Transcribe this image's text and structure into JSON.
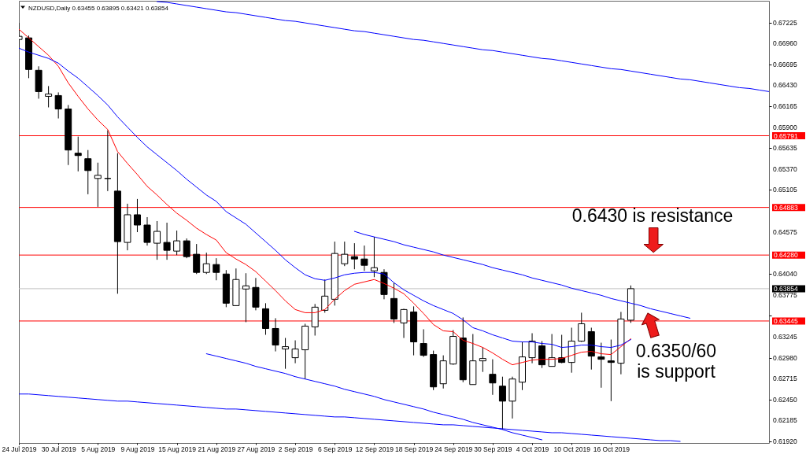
{
  "chart_data": {
    "type": "candlestick",
    "title": "NZDUSD,Daily 0.63455 0.63895 0.63421 0.63854",
    "categories": [
      "24 Jul 2019",
      null,
      null,
      null,
      "30 Jul 2019",
      null,
      null,
      null,
      "5 Aug 2019",
      null,
      null,
      null,
      "9 Aug 2019",
      null,
      null,
      null,
      "15 Aug 2019",
      null,
      null,
      null,
      "21 Aug 2019",
      null,
      null,
      null,
      "27 Aug 2019",
      null,
      null,
      null,
      "2 Sep 2019",
      null,
      null,
      null,
      "6 Sep 2019",
      null,
      null,
      null,
      "12 Sep 2019",
      null,
      null,
      null,
      "18 Sep 2019",
      null,
      null,
      null,
      "24 Sep 2019",
      null,
      null,
      null,
      "30 Sep 2019",
      null,
      null,
      null,
      "4 Oct 2019",
      null,
      null,
      null,
      "10 Oct 2019",
      null,
      null,
      null,
      "16 Oct 2019",
      null,
      null,
      null,
      null,
      null,
      null,
      null,
      null,
      null,
      null,
      null,
      null,
      null,
      null,
      null,
      null
    ],
    "ohlc": [
      [
        0.6701,
        0.6722,
        0.669,
        0.6705
      ],
      [
        0.6703,
        0.6706,
        0.6652,
        0.6663
      ],
      [
        0.6662,
        0.6667,
        0.6626,
        0.6635
      ],
      [
        0.6629,
        0.6642,
        0.6615,
        0.6632
      ],
      [
        0.663,
        0.6634,
        0.6601,
        0.6613
      ],
      [
        0.6613,
        0.6618,
        0.6542,
        0.6561
      ],
      [
        0.6557,
        0.6578,
        0.6534,
        0.6554
      ],
      [
        0.655,
        0.6561,
        0.6505,
        0.6535
      ],
      [
        0.6525,
        0.6545,
        0.6489,
        0.6529
      ],
      [
        0.6525,
        0.6586,
        0.6509,
        0.6525
      ],
      [
        0.6509,
        0.6557,
        0.6379,
        0.6445
      ],
      [
        0.6444,
        0.6493,
        0.6434,
        0.6479
      ],
      [
        0.6479,
        0.6499,
        0.6457,
        0.6466
      ],
      [
        0.6466,
        0.6476,
        0.644,
        0.6444
      ],
      [
        0.6443,
        0.6471,
        0.6422,
        0.6458
      ],
      [
        0.6444,
        0.6469,
        0.6422,
        0.6434
      ],
      [
        0.6433,
        0.6459,
        0.6428,
        0.6446
      ],
      [
        0.6446,
        0.6449,
        0.6424,
        0.6426
      ],
      [
        0.6429,
        0.6442,
        0.6404,
        0.6406
      ],
      [
        0.6406,
        0.6431,
        0.6404,
        0.6417
      ],
      [
        0.6416,
        0.6424,
        0.6396,
        0.6406
      ],
      [
        0.6404,
        0.6409,
        0.6362,
        0.6367
      ],
      [
        0.6364,
        0.6411,
        0.6364,
        0.6397
      ],
      [
        0.6385,
        0.6405,
        0.6343,
        0.6389
      ],
      [
        0.6387,
        0.6399,
        0.6358,
        0.6362
      ],
      [
        0.636,
        0.6367,
        0.6327,
        0.6335
      ],
      [
        0.6335,
        0.6348,
        0.6306,
        0.6314
      ],
      [
        0.6309,
        0.6323,
        0.6284,
        0.6312
      ],
      [
        0.6298,
        0.632,
        0.6291,
        0.6309
      ],
      [
        0.6308,
        0.6341,
        0.6271,
        0.6338
      ],
      [
        0.6337,
        0.6366,
        0.6326,
        0.6362
      ],
      [
        0.6358,
        0.6397,
        0.6355,
        0.6376
      ],
      [
        0.6372,
        0.6445,
        0.6364,
        0.643
      ],
      [
        0.6417,
        0.6445,
        0.6414,
        0.6429
      ],
      [
        0.6426,
        0.6443,
        0.641,
        0.6423
      ],
      [
        0.6423,
        0.644,
        0.6408,
        0.6415
      ],
      [
        0.6408,
        0.6451,
        0.64,
        0.6412
      ],
      [
        0.6406,
        0.641,
        0.6372,
        0.6378
      ],
      [
        0.6373,
        0.6393,
        0.6342,
        0.6347
      ],
      [
        0.6342,
        0.636,
        0.6323,
        0.6359
      ],
      [
        0.6356,
        0.6363,
        0.6301,
        0.6318
      ],
      [
        0.6316,
        0.6334,
        0.6299,
        0.6301
      ],
      [
        0.6302,
        0.6307,
        0.6257,
        0.6261
      ],
      [
        0.6265,
        0.6301,
        0.6259,
        0.6294
      ],
      [
        0.629,
        0.6333,
        0.6289,
        0.6325
      ],
      [
        0.6323,
        0.6349,
        0.6267,
        0.627
      ],
      [
        0.6264,
        0.6328,
        0.6264,
        0.6294
      ],
      [
        0.6294,
        0.6311,
        0.628,
        0.6297
      ],
      [
        0.6277,
        0.6296,
        0.6251,
        0.6266
      ],
      [
        0.6262,
        0.6274,
        0.6207,
        0.6243
      ],
      [
        0.6243,
        0.6274,
        0.6221,
        0.6271
      ],
      [
        0.6267,
        0.6318,
        0.6257,
        0.6299
      ],
      [
        0.6298,
        0.6329,
        0.6291,
        0.6319
      ],
      [
        0.6313,
        0.6319,
        0.6285,
        0.6289
      ],
      [
        0.6287,
        0.6328,
        0.6287,
        0.6298
      ],
      [
        0.6298,
        0.6327,
        0.6291,
        0.6292
      ],
      [
        0.6292,
        0.6336,
        0.6279,
        0.6319
      ],
      [
        0.6319,
        0.6355,
        0.6318,
        0.6341
      ],
      [
        0.6331,
        0.6336,
        0.6283,
        0.63
      ],
      [
        0.6299,
        0.6317,
        0.626,
        0.6296
      ],
      [
        0.6294,
        0.6321,
        0.6243,
        0.6292
      ],
      [
        0.6291,
        0.6356,
        0.6277,
        0.6347
      ],
      [
        0.63455,
        0.63895,
        0.63421,
        0.63854
      ],
      null,
      null,
      null,
      null,
      null,
      null,
      null,
      null,
      null,
      null,
      null,
      null,
      null,
      null
    ],
    "series": [
      {
        "type": "line",
        "color": "#ff0000",
        "values": [
          0.6714,
          0.6703,
          0.6692,
          0.6681,
          0.6667,
          0.6646,
          0.6629,
          0.6613,
          0.6599,
          0.6587,
          0.6559,
          0.6544,
          0.653,
          0.6515,
          0.6504,
          0.6492,
          0.6481,
          0.6472,
          0.6462,
          0.6454,
          0.6447,
          0.6431,
          0.6423,
          0.6416,
          0.6407,
          0.6395,
          0.6383,
          0.637,
          0.6359,
          0.6355,
          0.6355,
          0.6359,
          0.6372,
          0.6383,
          0.6391,
          0.6394,
          0.6397,
          0.6392,
          0.6386,
          0.6379,
          0.6367,
          0.6354,
          0.634,
          0.6332,
          0.6331,
          0.632,
          0.6316,
          0.6311,
          0.6304,
          0.6296,
          0.6289,
          0.6292,
          0.6295,
          0.6296,
          0.6296,
          0.6297,
          0.6301,
          0.6305,
          0.6306,
          0.6303,
          0.6302,
          0.6312,
          0.6322,
          null,
          null,
          null,
          null,
          null,
          null,
          null,
          null,
          null,
          null,
          null,
          null,
          null,
          null
        ]
      },
      {
        "type": "line",
        "color": "#0000ff",
        "values": [
          0.669,
          0.6685,
          0.6681,
          0.6677,
          0.6671,
          0.6661,
          0.6652,
          0.6641,
          0.663,
          0.6618,
          0.6603,
          0.659,
          0.6577,
          0.6565,
          0.6555,
          0.6545,
          0.6535,
          0.6524,
          0.6514,
          0.6504,
          0.6496,
          0.6483,
          0.6475,
          0.6467,
          0.6456,
          0.6445,
          0.6434,
          0.6422,
          0.6412,
          0.6403,
          0.6398,
          0.6396,
          0.6399,
          0.6403,
          0.6405,
          0.6406,
          0.6406,
          0.6404,
          0.6393,
          0.6384,
          0.6377,
          0.637,
          0.6364,
          0.6359,
          0.6354,
          0.6346,
          0.6336,
          0.6332,
          0.6327,
          0.6323,
          0.6319,
          0.6318,
          0.6318,
          0.6316,
          0.6315,
          0.6311,
          0.6312,
          0.6314,
          0.6314,
          0.6312,
          0.6311,
          0.6314,
          0.6321,
          null,
          null,
          null,
          null,
          null,
          null,
          null,
          null,
          null,
          null,
          null,
          null,
          null,
          null
        ]
      },
      {
        "type": "line",
        "color": "#0000ff",
        "values": [
          null,
          null,
          null,
          null,
          null,
          null,
          null,
          null,
          null,
          null,
          null,
          null,
          null,
          null,
          0.6749,
          0.6748,
          0.6746,
          0.6744,
          0.6742,
          0.674,
          0.6738,
          0.6736,
          0.6735,
          0.6733,
          0.6731,
          0.6729,
          0.6727,
          0.6725,
          0.6724,
          0.6722,
          0.672,
          0.6718,
          0.6716,
          0.6714,
          0.6712,
          0.6711,
          0.6709,
          0.6707,
          0.6705,
          0.6703,
          0.6701,
          0.67,
          0.6698,
          0.6696,
          0.6694,
          0.6692,
          0.669,
          0.6688,
          0.6687,
          0.6685,
          0.6683,
          0.6681,
          0.6679,
          0.6677,
          0.6676,
          0.6674,
          0.6672,
          0.667,
          0.6668,
          0.6666,
          0.6664,
          0.6663,
          0.6661,
          0.6659,
          0.6657,
          0.6655,
          0.6653,
          0.6651,
          0.665,
          0.6648,
          0.6646,
          0.6644,
          0.6642,
          0.664,
          0.6639,
          0.6637,
          0.6635
        ]
      },
      {
        "type": "line",
        "color": "#0000ff",
        "values": [
          null,
          null,
          null,
          null,
          null,
          null,
          null,
          null,
          null,
          null,
          null,
          null,
          null,
          null,
          null,
          null,
          null,
          null,
          null,
          null,
          null,
          null,
          null,
          null,
          null,
          null,
          null,
          null,
          null,
          null,
          null,
          null,
          null,
          null,
          0.6458,
          0.6454,
          0.6451,
          0.6448,
          0.6445,
          0.6441,
          0.6438,
          0.6435,
          0.6432,
          0.6428,
          0.6425,
          0.6422,
          0.6419,
          0.6416,
          0.6412,
          0.6409,
          0.6406,
          0.6403,
          0.6399,
          0.6396,
          0.6393,
          0.639,
          0.6386,
          0.6383,
          0.638,
          0.6377,
          0.6373,
          0.637,
          0.6367,
          0.6364,
          0.636,
          0.6357,
          0.6354,
          0.6351,
          0.6348,
          null,
          null,
          null,
          null,
          null,
          null,
          null,
          null
        ]
      },
      {
        "type": "line",
        "color": "#0000ff",
        "values": [
          null,
          null,
          null,
          null,
          null,
          null,
          null,
          null,
          null,
          null,
          null,
          null,
          null,
          null,
          null,
          null,
          null,
          null,
          null,
          0.6303,
          0.63,
          0.6297,
          0.6294,
          0.6291,
          0.6287,
          0.6284,
          0.6281,
          0.6278,
          0.6274,
          0.6271,
          0.6268,
          0.6265,
          0.6262,
          0.6258,
          0.6255,
          0.6252,
          0.6249,
          0.6245,
          0.6242,
          0.6239,
          0.6236,
          0.6233,
          0.6229,
          0.6226,
          0.6223,
          0.622,
          0.6216,
          0.6213,
          0.621,
          0.6207,
          0.6203,
          0.62,
          0.6197,
          0.6194,
          null,
          null,
          null,
          null,
          null,
          null,
          null,
          null,
          null,
          null,
          null,
          null,
          null,
          null,
          null,
          null,
          null,
          null,
          null,
          null,
          null,
          null,
          null
        ]
      },
      {
        "type": "line",
        "color": "#0000ff",
        "values": [
          0.6252,
          0.6252,
          0.6251,
          0.625,
          0.6249,
          0.6248,
          0.6247,
          0.6246,
          0.6245,
          0.6244,
          0.6243,
          0.6243,
          0.6242,
          0.6241,
          0.624,
          0.6239,
          0.6238,
          0.6237,
          0.6236,
          0.6235,
          0.6234,
          0.6233,
          0.6233,
          0.6232,
          0.6231,
          0.623,
          0.6229,
          0.6228,
          0.6227,
          0.6226,
          0.6225,
          0.6224,
          0.6223,
          0.6223,
          0.6222,
          0.6221,
          0.622,
          0.6219,
          0.6218,
          0.6217,
          0.6216,
          0.6215,
          0.6214,
          0.6213,
          0.6213,
          0.6212,
          0.6211,
          0.621,
          0.6209,
          0.6208,
          0.6207,
          0.6206,
          0.6205,
          0.6204,
          0.6203,
          0.6203,
          0.6202,
          0.6201,
          0.62,
          0.6199,
          0.6198,
          0.6197,
          0.6196,
          0.6195,
          0.6194,
          0.6193,
          0.6193,
          0.6192,
          null,
          null,
          null,
          null,
          null,
          null,
          null,
          null,
          null
        ]
      }
    ],
    "ylim": [
      0.619,
      0.675
    ],
    "yticks": [
      0.67225,
      {
        "value": 0.6696,
        "label": "0.66960"
      },
      0.66695,
      {
        "value": 0.6643,
        "label": "0.66430"
      },
      0.66165,
      {
        "value": 0.659,
        "label": "0.65900"
      },
      0.65635,
      {
        "value": 0.6537,
        "label": "0.65370"
      },
      0.65105,
      0.64575,
      {
        "value": 0.6404,
        "label": "0.64040"
      },
      0.63775,
      {
        "value": 0.6351,
        "label": null
      },
      0.63245,
      {
        "value": 0.6298,
        "label": "0.62980"
      },
      0.62715,
      {
        "value": 0.6245,
        "label": "0.62450"
      },
      0.62185,
      {
        "value": 0.6192,
        "label": "0.61920"
      }
    ],
    "ref_lines": [
      {
        "axis": "y",
        "value": 0.65791,
        "label": "0.65791",
        "color": "#ff0000"
      },
      {
        "axis": "y",
        "value": 0.64883,
        "label": "0.64883",
        "color": "#ff0000"
      },
      {
        "axis": "y",
        "value": 0.6428,
        "label": "0.64280",
        "color": "#ff0000"
      },
      {
        "axis": "y",
        "value": 0.63854,
        "label": "0.63854",
        "color": "#c0c0c0"
      },
      {
        "axis": "y",
        "value": 0.63445,
        "label": "0.63445",
        "color": "#ff0000"
      }
    ],
    "annotations": [
      "0.6430 is resistance",
      "0.6350/60\nis support"
    ]
  }
}
